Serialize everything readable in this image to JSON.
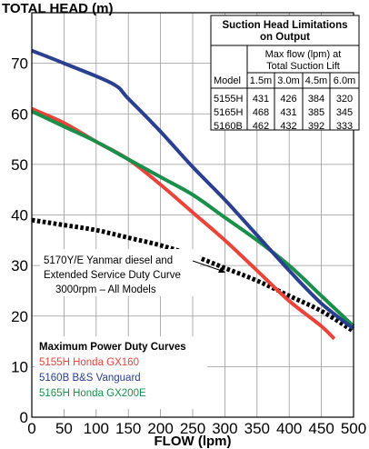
{
  "chart_data": {
    "type": "line",
    "title": "",
    "ylabel": "TOTAL HEAD (m)",
    "xlabel": "FLOW (lpm)",
    "xlim": [
      0,
      500
    ],
    "ylim": [
      0,
      80
    ],
    "x_ticks": [
      "0",
      "50",
      "100",
      "150",
      "200",
      "250",
      "300",
      "350",
      "400",
      "450",
      "500"
    ],
    "y_ticks": [
      "0",
      "10",
      "20",
      "30",
      "40",
      "50",
      "60",
      "70"
    ],
    "grid": true,
    "series": [
      {
        "name": "5155H Honda GX160",
        "color": "#e8443a",
        "style": "solid",
        "x": [
          0,
          50,
          100,
          150,
          200,
          250,
          300,
          350,
          400,
          450,
          470
        ],
        "y": [
          61,
          58.2,
          54.5,
          51,
          46,
          40.5,
          35,
          29,
          23,
          18,
          15.5
        ]
      },
      {
        "name": "5160B B&S Vanguard",
        "color": "#2a3f8f",
        "style": "solid",
        "x": [
          0,
          50,
          125,
          150,
          200,
          250,
          300,
          350,
          400,
          450,
          500
        ],
        "y": [
          72.5,
          70,
          66,
          63,
          56.5,
          49.5,
          43,
          36,
          29,
          22.5,
          17.5
        ]
      },
      {
        "name": "5165H Honda GX200E",
        "color": "#1a8f4a",
        "style": "solid",
        "x": [
          0,
          50,
          100,
          150,
          200,
          250,
          300,
          350,
          400,
          450,
          500
        ],
        "y": [
          60.5,
          57.5,
          54.5,
          51,
          47.5,
          44,
          39.5,
          35,
          30,
          24,
          18
        ]
      },
      {
        "name": "5170Y/E Yanmar diesel",
        "color": "#000000",
        "style": "dotted",
        "x": [
          0,
          50,
          100,
          150,
          200,
          250,
          300,
          350,
          400,
          450,
          500
        ],
        "y": [
          39,
          38,
          37,
          35.5,
          34,
          32,
          29.5,
          27,
          24,
          21,
          17
        ]
      }
    ],
    "annotation": {
      "lines": [
        "5170Y/E Yanmar diesel and",
        "Extended Service Duty Curve",
        "3000rpm – All Models"
      ]
    },
    "legend": {
      "title": "Maximum Power Duty Curves",
      "placement": "bottom-left",
      "items": [
        {
          "label": "5155H Honda GX160",
          "color": "#e8443a"
        },
        {
          "label": "5160B B&S Vanguard",
          "color": "#2a3f8f"
        },
        {
          "label": "5165H Honda GX200E",
          "color": "#1a8f4a"
        }
      ]
    },
    "table": {
      "title": [
        "Suction Head Limitations",
        "on Output"
      ],
      "subheader": [
        "Max flow (lpm) at",
        "Total Suction Lift"
      ],
      "columns": [
        "Model",
        "1.5m",
        "3.0m",
        "4.5m",
        "6.0m"
      ],
      "rows": [
        [
          "5155H",
          "431",
          "426",
          "384",
          "320"
        ],
        [
          "5165H",
          "468",
          "431",
          "385",
          "345"
        ],
        [
          "5160B",
          "462",
          "432",
          "392",
          "333"
        ]
      ]
    }
  }
}
